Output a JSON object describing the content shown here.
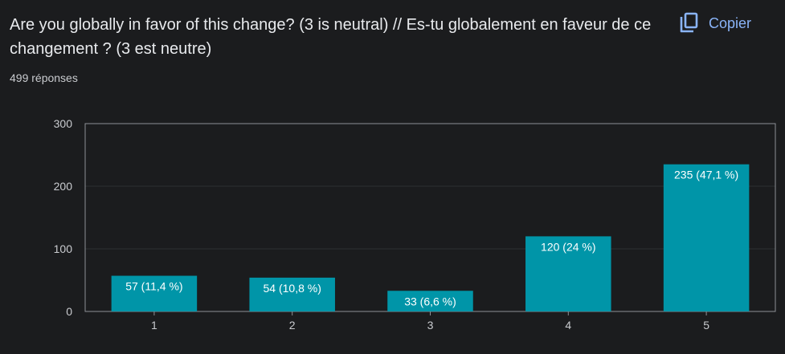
{
  "question": "Are you globally in favor of this change? (3 is neutral) // Es-tu globalement en faveur de ce changement ? (3 est neutre)",
  "response_count": "499 réponses",
  "copy_button": {
    "label": "Copier",
    "icon": "copy-icon"
  },
  "colors": {
    "bar": "#0095a8",
    "background": "#1b1c1e",
    "accent": "#8ab4f8"
  },
  "chart_data": {
    "type": "bar",
    "categories": [
      "1",
      "2",
      "3",
      "4",
      "5"
    ],
    "values": [
      57,
      54,
      33,
      120,
      235
    ],
    "data_labels": [
      "57 (11,4 %)",
      "54 (10,8 %)",
      "33 (6,6 %)",
      "120 (24 %)",
      "235 (47,1 %)"
    ],
    "ylim": [
      0,
      300
    ],
    "yticks": [
      0,
      100,
      200,
      300
    ],
    "grid": true
  }
}
